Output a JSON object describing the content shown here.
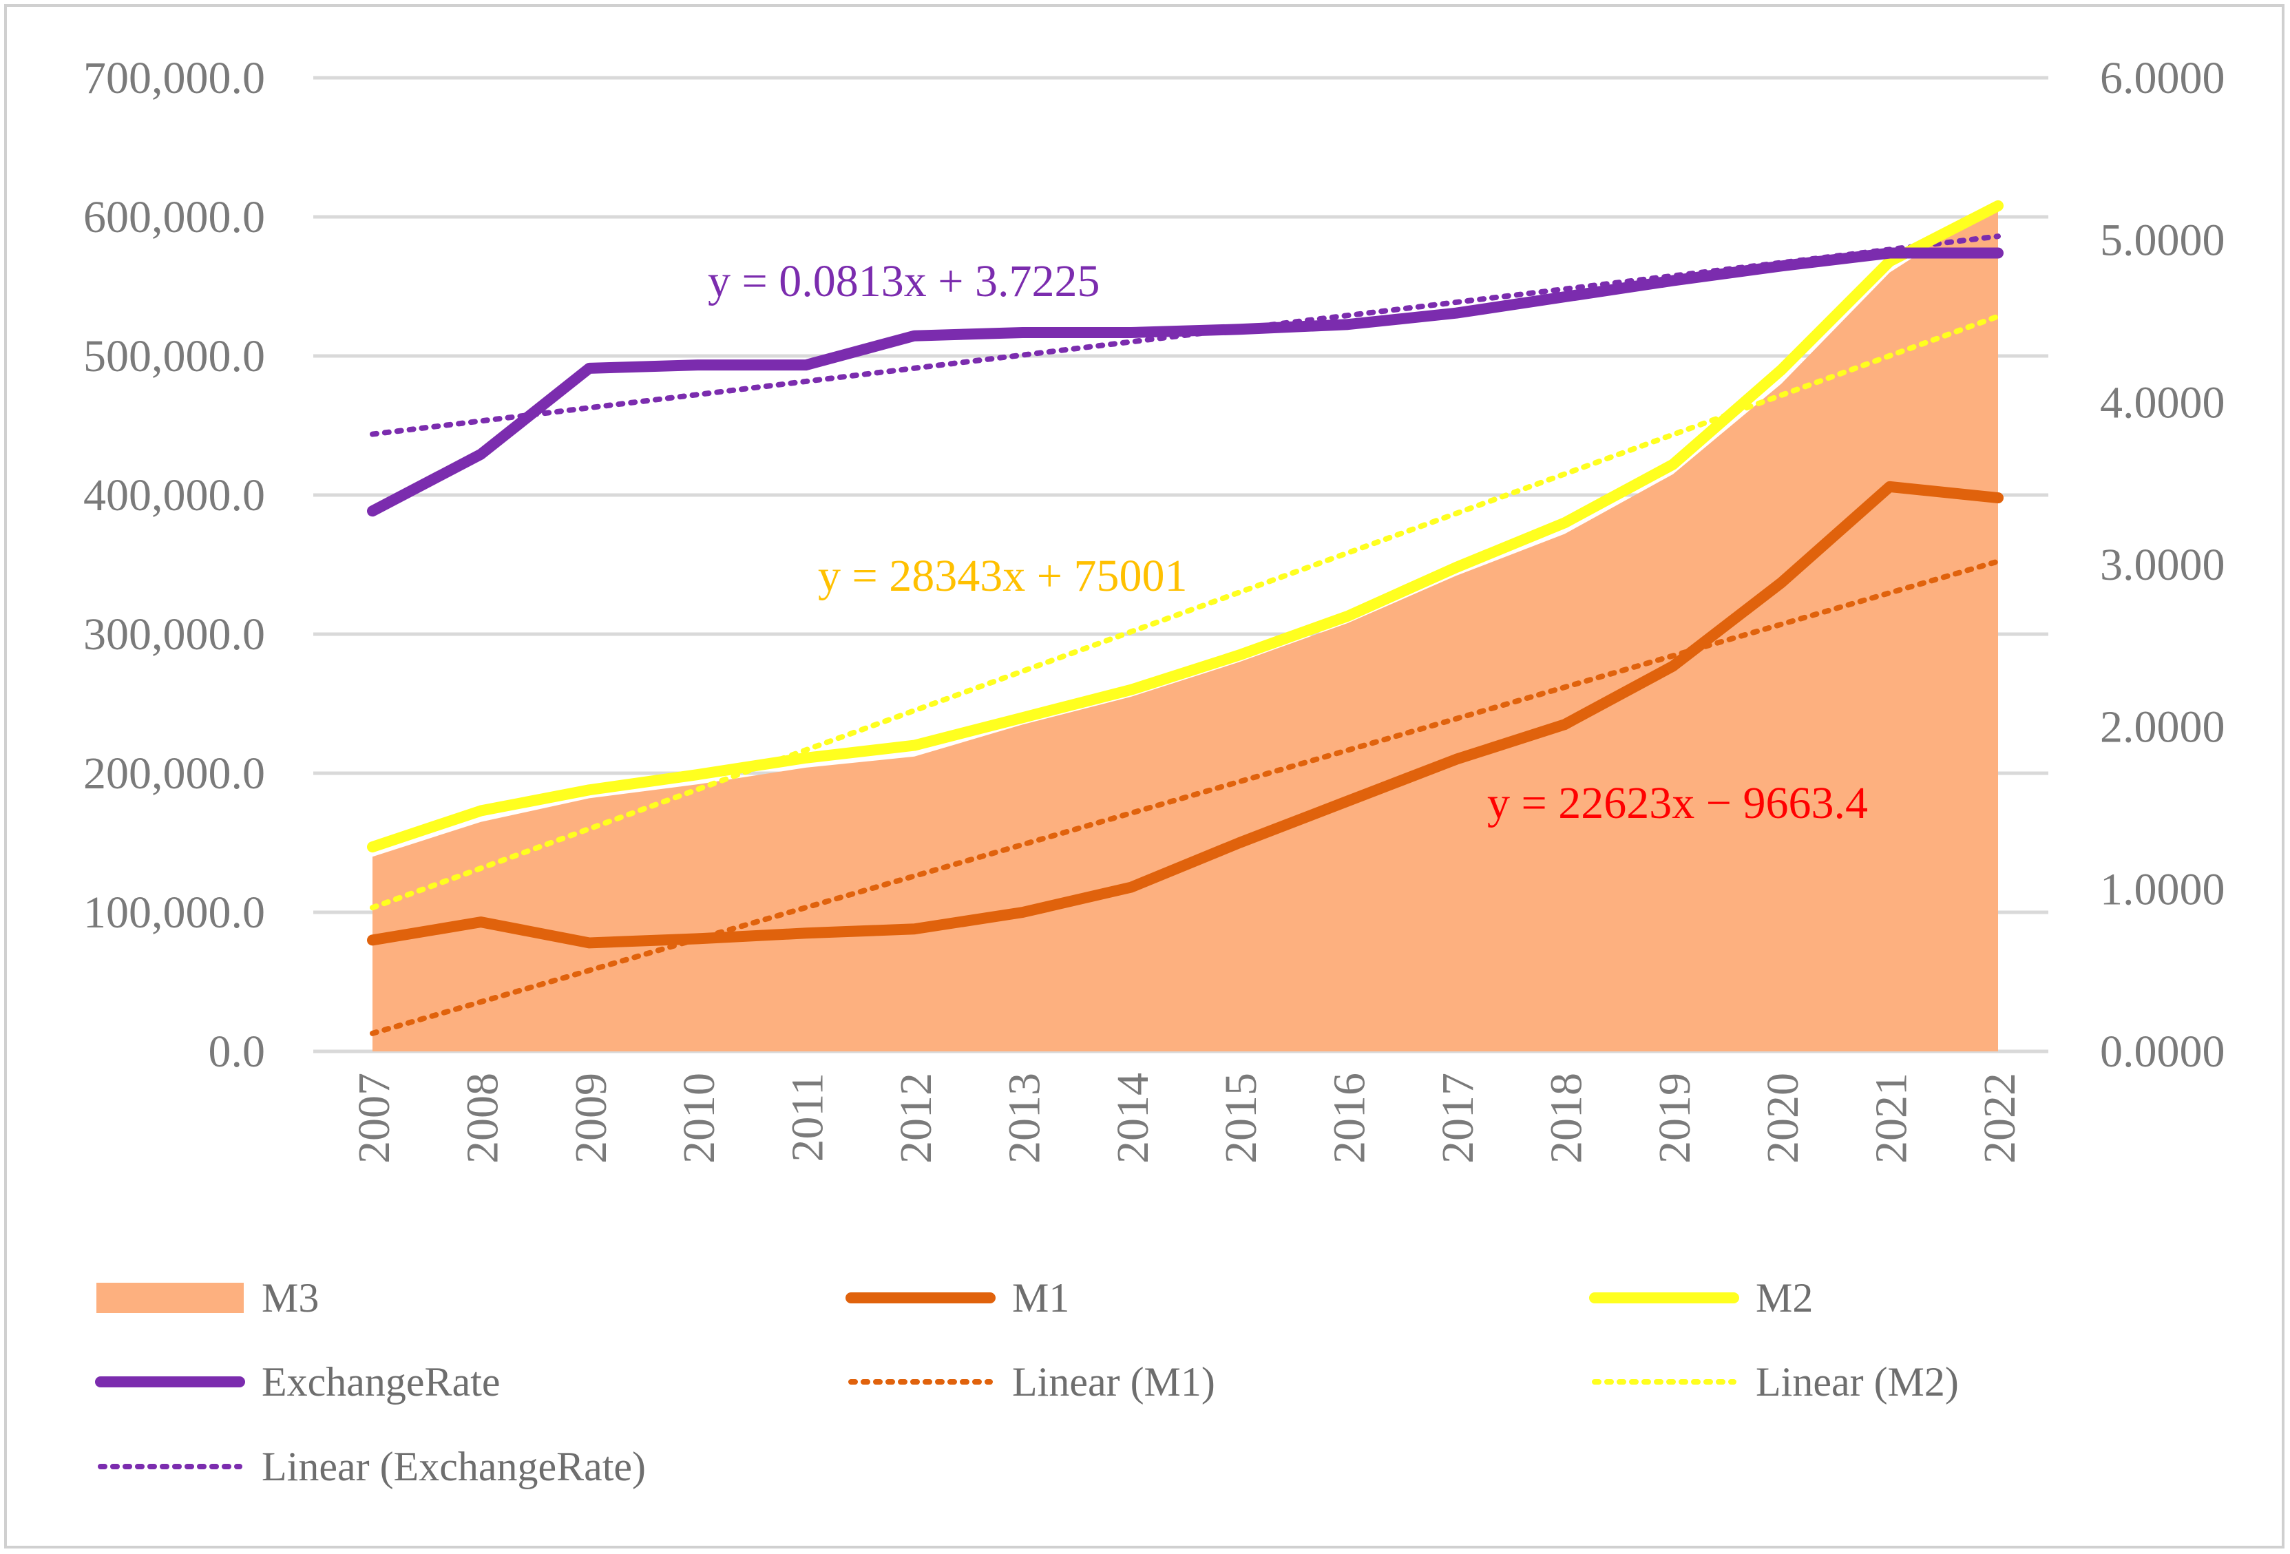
{
  "chart_data": {
    "type": "line",
    "title": "",
    "categories": [
      "2007",
      "2008",
      "2009",
      "2010",
      "2011",
      "2012",
      "2013",
      "2014",
      "2015",
      "2016",
      "2017",
      "2018",
      "2019",
      "2020",
      "2021",
      "2022"
    ],
    "y_left": {
      "range": [
        0,
        700000
      ],
      "ticks": [
        0,
        100000,
        200000,
        300000,
        400000,
        500000,
        600000,
        700000
      ],
      "tick_labels": [
        "0.0",
        "100,000.0",
        "200,000.0",
        "300,000.0",
        "400,000.0",
        "500,000.0",
        "600,000.0",
        "700,000.0"
      ]
    },
    "y_right": {
      "range": [
        0,
        6
      ],
      "ticks": [
        0,
        1,
        2,
        3,
        4,
        5,
        6
      ],
      "tick_labels": [
        "0.0000",
        "1.0000",
        "2.0000",
        "3.0000",
        "4.0000",
        "5.0000",
        "6.0000"
      ]
    },
    "grid": true,
    "legend_position": "bottom",
    "series": [
      {
        "name": "M3",
        "kind": "area",
        "axis": "left",
        "color": "#FDB07F",
        "values": [
          140000,
          165000,
          182000,
          192000,
          204000,
          212000,
          235000,
          255000,
          280000,
          308000,
          342000,
          372000,
          415000,
          480000,
          560000,
          610000
        ]
      },
      {
        "name": "M1",
        "kind": "line",
        "axis": "left",
        "color": "#E0620C",
        "values": [
          80000,
          93000,
          78000,
          81000,
          85000,
          88000,
          100000,
          118000,
          150000,
          180000,
          210000,
          235000,
          277000,
          337000,
          406000,
          398000
        ]
      },
      {
        "name": "M2",
        "kind": "line",
        "axis": "left",
        "color": "#FFFF1F",
        "values": [
          147000,
          173000,
          188000,
          199000,
          211000,
          220000,
          240000,
          260000,
          285000,
          313000,
          348000,
          380000,
          422000,
          490000,
          568000,
          608000
        ]
      },
      {
        "name": "ExchangeRate",
        "kind": "line",
        "axis": "right",
        "color": "#7B2CAE",
        "values": [
          3.33,
          3.68,
          4.21,
          4.23,
          4.23,
          4.41,
          4.43,
          4.43,
          4.45,
          4.48,
          4.55,
          4.65,
          4.75,
          4.84,
          4.92,
          4.92
        ]
      },
      {
        "name": "Linear (M1)",
        "kind": "trendline",
        "axis": "left",
        "color": "#E0620C",
        "of": "M1",
        "slope": 22623,
        "intercept": -9663.4
      },
      {
        "name": "Linear (M2)",
        "kind": "trendline",
        "axis": "left",
        "color": "#FFFF1F",
        "of": "M2",
        "slope": 28343,
        "intercept": 75001
      },
      {
        "name": "Linear (ExchangeRate)",
        "kind": "trendline",
        "axis": "right",
        "color": "#7B2CAE",
        "of": "ExchangeRate",
        "slope": 0.0813,
        "intercept": 3.7225
      }
    ],
    "annotations": [
      {
        "text": "y = 0.0813x + 3.7225",
        "color": "#7B2CAE",
        "near": "ExchangeRate trendline"
      },
      {
        "text": "y = 28343x + 75001",
        "color": "#FFC000",
        "near": "M2 trendline"
      },
      {
        "text": "y = 22623x − 9663.4",
        "color": "#FF0000",
        "near": "M1 trendline"
      }
    ]
  }
}
